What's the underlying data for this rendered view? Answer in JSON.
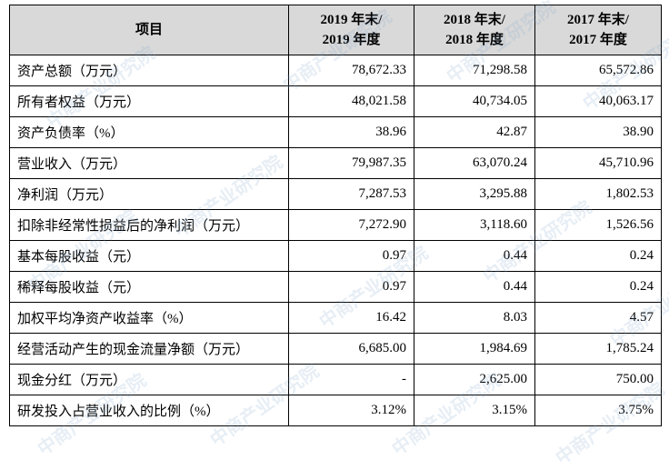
{
  "table": {
    "header": [
      "项目",
      [
        "2019 年末/",
        "2019 年度"
      ],
      [
        "2018 年末/",
        "2018 年度"
      ],
      [
        "2017 年末/",
        "2017 年度"
      ]
    ],
    "rows": [
      [
        "资产总额（万元）",
        "78,672.33",
        "71,298.58",
        "65,572.86"
      ],
      [
        "所有者权益（万元）",
        "48,021.58",
        "40,734.05",
        "40,063.17"
      ],
      [
        "资产负债率（%）",
        "38.96",
        "42.87",
        "38.90"
      ],
      [
        "营业收入（万元）",
        "79,987.35",
        "63,070.24",
        "45,710.96"
      ],
      [
        "净利润（万元）",
        "7,287.53",
        "3,295.88",
        "1,802.53"
      ],
      [
        "扣除非经常性损益后的净利润（万元）",
        "7,272.90",
        "3,118.60",
        "1,526.56"
      ],
      [
        "基本每股收益（元）",
        "0.97",
        "0.44",
        "0.24"
      ],
      [
        "稀释每股收益（元）",
        "0.97",
        "0.44",
        "0.24"
      ],
      [
        "加权平均净资产收益率（%）",
        "16.42",
        "8.03",
        "4.57"
      ],
      [
        "经营活动产生的现金流量净额（万元）",
        "6,685.00",
        "1,984.69",
        "1,785.24"
      ],
      [
        "现金分红（万元）",
        "-",
        "2,625.00",
        "750.00"
      ],
      [
        "研发投入占营业收入的比例（%）",
        "3.12%",
        "3.15%",
        "3.75%"
      ]
    ]
  },
  "watermark": "中商产业研究院"
}
